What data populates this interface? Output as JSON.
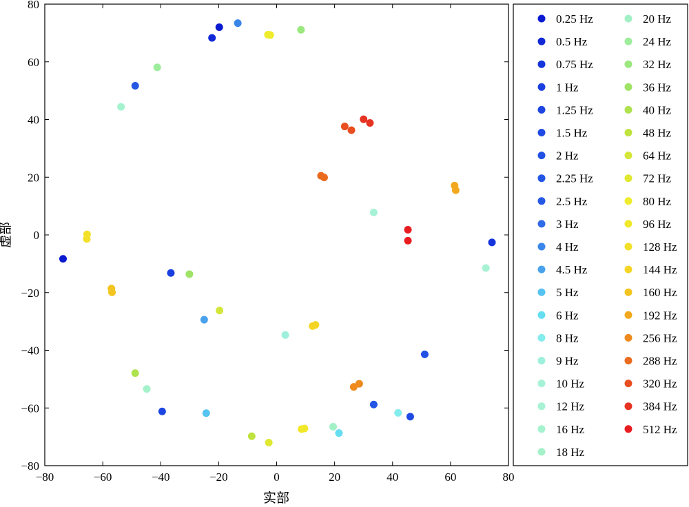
{
  "chart_data": {
    "type": "scatter",
    "xlabel": "实部",
    "ylabel": "虚部",
    "xlim": [
      -80,
      80
    ],
    "ylim": [
      -80,
      80
    ],
    "xticks": [
      "−80",
      "−60",
      "−40",
      "−20",
      "0",
      "20",
      "40",
      "60",
      "80"
    ],
    "yticks": [
      "80",
      "60",
      "40",
      "20",
      "0",
      "−20",
      "−40",
      "−60",
      "−80"
    ],
    "grid": false,
    "legend_position": "outside-right",
    "series": [
      {
        "name": "0.25 Hz",
        "color": "#0a1ad0",
        "points": [
          [
            -73.7,
            -8.3
          ],
          [
            -19.8,
            72.0
          ]
        ]
      },
      {
        "name": "0.5 Hz",
        "color": "#1028d6",
        "points": [
          [
            -22.3,
            68.3
          ]
        ]
      },
      {
        "name": "0.75 Hz",
        "color": "#1535dc",
        "points": [
          [
            74.3,
            -2.6
          ]
        ]
      },
      {
        "name": "1 Hz",
        "color": "#1a3fe0",
        "points": [
          [
            -36.5,
            -13.2
          ]
        ]
      },
      {
        "name": "1.25 Hz",
        "color": "#1d45e2",
        "points": [
          [
            -39.5,
            -61.2
          ]
        ]
      },
      {
        "name": "1.5 Hz",
        "color": "#1f4ae3",
        "points": [
          [
            46.1,
            -63.0
          ]
        ]
      },
      {
        "name": "2 Hz",
        "color": "#2150e4",
        "points": [
          [
            51.1,
            -41.4
          ]
        ]
      },
      {
        "name": "2.25 Hz",
        "color": "#2355e5",
        "points": [
          [
            33.5,
            -58.8
          ]
        ]
      },
      {
        "name": "2.5 Hz",
        "color": "#2558e5",
        "points": [
          [
            -48.8,
            51.7
          ]
        ]
      },
      {
        "name": "3 Hz",
        "color": "#2f6ae8",
        "points": []
      },
      {
        "name": "4 Hz",
        "color": "#3a85ea",
        "points": [
          [
            -13.4,
            73.4
          ]
        ]
      },
      {
        "name": "4.5 Hz",
        "color": "#4ba2ec",
        "points": [
          [
            -25.0,
            -29.4
          ]
        ]
      },
      {
        "name": "5 Hz",
        "color": "#56c3f0",
        "points": [
          [
            -24.3,
            -61.8
          ]
        ]
      },
      {
        "name": "6 Hz",
        "color": "#66def2",
        "points": [
          [
            21.5,
            -68.7
          ]
        ]
      },
      {
        "name": "8 Hz",
        "color": "#84ecec",
        "points": [
          [
            41.9,
            -61.7
          ]
        ]
      },
      {
        "name": "9 Hz",
        "color": "#9ef0dc",
        "points": [
          [
            3.0,
            -34.7
          ]
        ]
      },
      {
        "name": "10 Hz",
        "color": "#a6f2d6",
        "points": [
          [
            33.5,
            7.8
          ]
        ]
      },
      {
        "name": "12 Hz",
        "color": "#a8f2d4",
        "points": [
          [
            72.2,
            -11.5
          ]
        ]
      },
      {
        "name": "16 Hz",
        "color": "#a6f2cf",
        "points": [
          [
            -53.7,
            44.4
          ]
        ]
      },
      {
        "name": "18 Hz",
        "color": "#a4f1ca",
        "points": [
          [
            -44.8,
            -53.4
          ]
        ]
      },
      {
        "name": "20 Hz",
        "color": "#a2f0c6",
        "points": [
          [
            19.5,
            -66.5
          ]
        ]
      },
      {
        "name": "24 Hz",
        "color": "#9ded9c",
        "points": [
          [
            -41.2,
            58.1
          ]
        ]
      },
      {
        "name": "32 Hz",
        "color": "#9ae87e",
        "points": [
          [
            8.4,
            71.1
          ]
        ]
      },
      {
        "name": "36 Hz",
        "color": "#9fe466",
        "points": [
          [
            -30.1,
            -13.6
          ]
        ]
      },
      {
        "name": "40 Hz",
        "color": "#aee24e",
        "points": [
          [
            -48.8,
            -47.9
          ]
        ]
      },
      {
        "name": "48 Hz",
        "color": "#bfe23e",
        "points": [
          [
            -8.6,
            -69.8
          ]
        ]
      },
      {
        "name": "64 Hz",
        "color": "#d4e63a",
        "points": [
          [
            -19.7,
            -26.2
          ]
        ]
      },
      {
        "name": "72 Hz",
        "color": "#e0e832",
        "points": [
          [
            -2.7,
            -72.0
          ]
        ]
      },
      {
        "name": "80 Hz",
        "color": "#eeec2c",
        "points": [
          [
            -3.0,
            69.4
          ],
          [
            -2.2,
            69.3
          ]
        ]
      },
      {
        "name": "96 Hz",
        "color": "#f1e82a",
        "points": [
          [
            8.6,
            -67.3
          ],
          [
            9.6,
            -67.1
          ]
        ]
      },
      {
        "name": "128 Hz",
        "color": "#f3e028",
        "points": [
          [
            -65.5,
            -1.4
          ],
          [
            -65.4,
            0.2
          ]
        ]
      },
      {
        "name": "144 Hz",
        "color": "#f4d526",
        "points": [
          [
            12.4,
            -31.6
          ],
          [
            13.4,
            -31.2
          ]
        ]
      },
      {
        "name": "160 Hz",
        "color": "#f3c520",
        "points": [
          [
            -57.0,
            -18.6
          ],
          [
            -56.8,
            -19.9
          ]
        ]
      },
      {
        "name": "192 Hz",
        "color": "#f2a81e",
        "points": [
          [
            61.4,
            17.1
          ],
          [
            61.8,
            15.5
          ]
        ]
      },
      {
        "name": "256 Hz",
        "color": "#ee8a1e",
        "points": [
          [
            26.6,
            -52.7
          ],
          [
            28.5,
            -51.6
          ]
        ]
      },
      {
        "name": "288 Hz",
        "color": "#ea6b1e",
        "points": [
          [
            15.3,
            20.5
          ],
          [
            16.4,
            19.9
          ]
        ]
      },
      {
        "name": "320 Hz",
        "color": "#e84e20",
        "points": [
          [
            23.5,
            37.6
          ],
          [
            25.8,
            36.3
          ]
        ]
      },
      {
        "name": "384 Hz",
        "color": "#e63422",
        "points": [
          [
            30.0,
            40.1
          ],
          [
            32.2,
            38.8
          ]
        ]
      },
      {
        "name": "512 Hz",
        "color": "#e81c20",
        "points": [
          [
            45.3,
            1.8
          ],
          [
            45.3,
            -2.0
          ]
        ]
      }
    ]
  }
}
